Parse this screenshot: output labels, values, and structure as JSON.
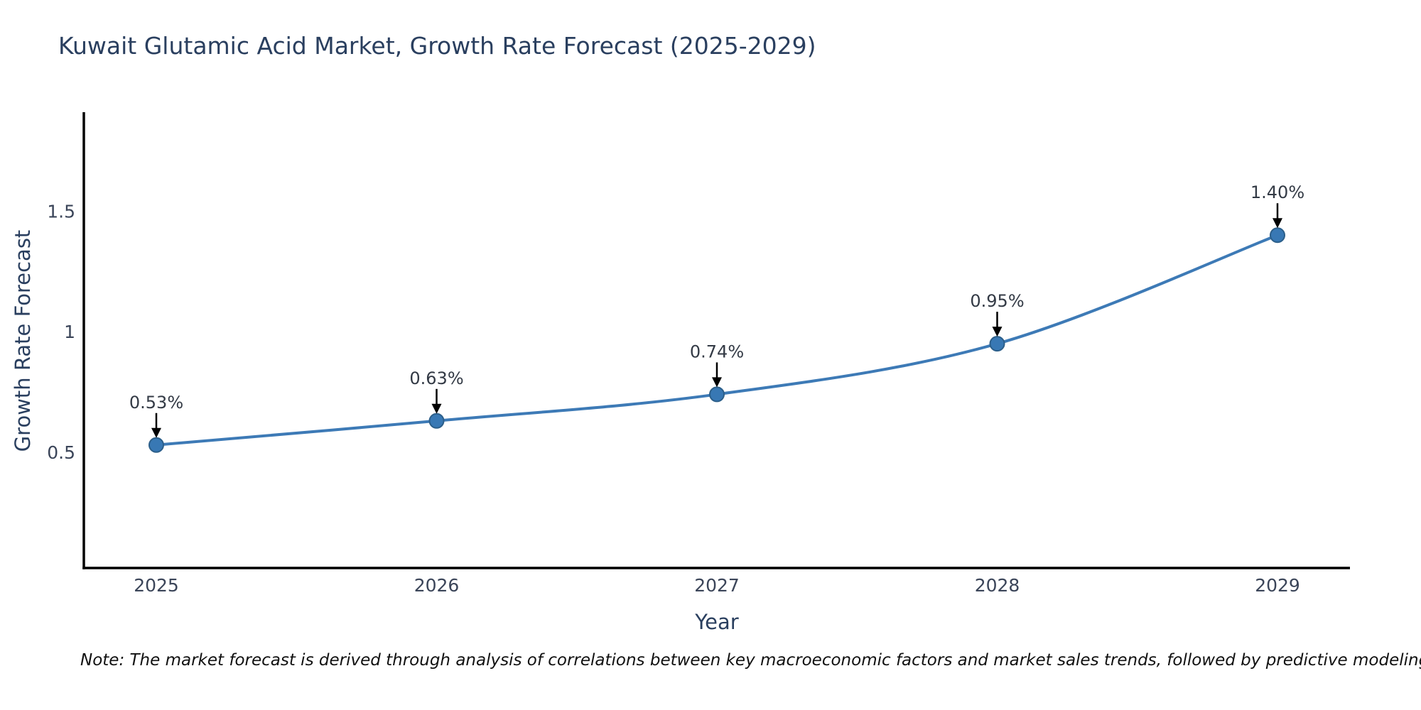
{
  "page": {
    "note": "Note: The market forecast is derived through analysis of correlations between key macroeconomic factors and market sales trends, followed by predictive modeling to project future sales"
  },
  "chart_data": {
    "type": "line",
    "title": "Kuwait Glutamic Acid Market, Growth Rate Forecast (2025-2029)",
    "x": [
      2025,
      2026,
      2027,
      2028,
      2029
    ],
    "x_tick_labels": [
      "2025",
      "2026",
      "2027",
      "2028",
      "2029"
    ],
    "series": [
      {
        "name": "Growth Rate Forecast",
        "values": [
          0.53,
          0.63,
          0.74,
          0.95,
          1.4
        ],
        "point_labels": [
          "0.53%",
          "0.63%",
          "0.74%",
          "0.95%",
          "1.40%"
        ]
      }
    ],
    "xlabel": "Year",
    "ylabel": "Growth Rate Forecast",
    "y_ticks": [
      0.5,
      1,
      1.5
    ],
    "y_tick_labels": [
      "0.5",
      "1",
      "1.5"
    ],
    "ylim": [
      0.02,
      1.91
    ],
    "grid": false,
    "legend_position": "none",
    "line_color": "#3d7ab6",
    "marker_color": "#3878b4",
    "marker_edge_color": "#2c5f8a",
    "annotation_arrow_color": "#000000",
    "axis_color": "#000000"
  }
}
